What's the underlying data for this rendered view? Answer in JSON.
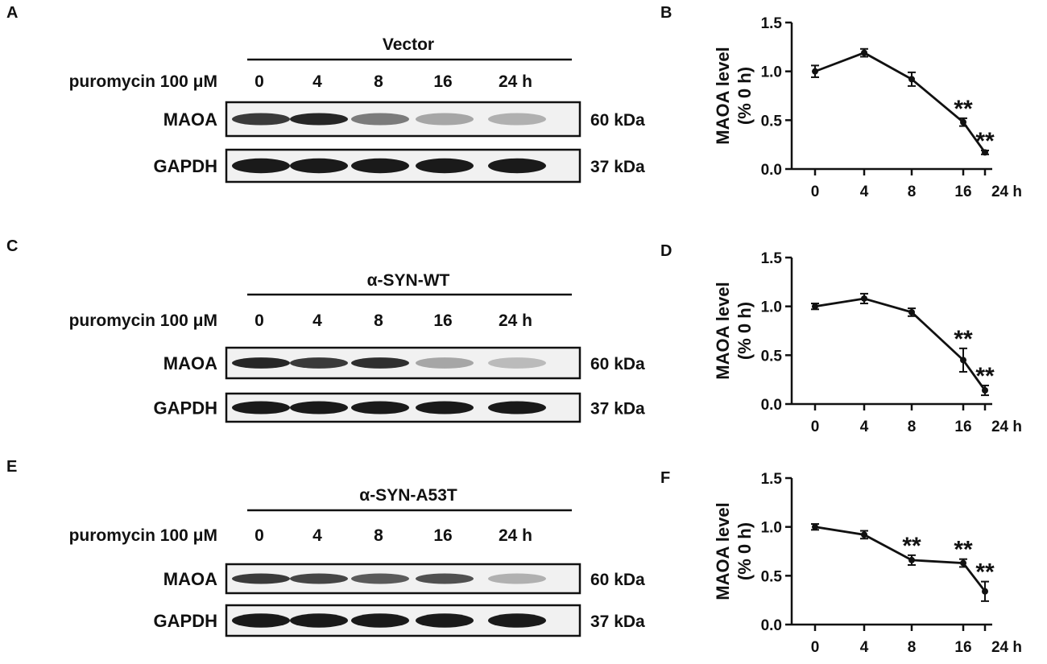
{
  "panels": [
    {
      "letter": "A",
      "treatment_label": "puromycin 100 μM",
      "group": "Vector",
      "lanes": [
        "0",
        "4",
        "8",
        "16",
        "24 h"
      ],
      "rows": [
        {
          "name": "MAOA",
          "size": "60 kDa",
          "intensity": [
            0.85,
            0.95,
            0.55,
            0.35,
            0.3
          ]
        },
        {
          "name": "GAPDH",
          "size": "37 kDa",
          "intensity": [
            1,
            1,
            1,
            1,
            1
          ]
        }
      ]
    },
    {
      "letter": "C",
      "treatment_label": "puromycin 100 μM",
      "group": "α-SYN-WT",
      "lanes": [
        "0",
        "4",
        "8",
        "16",
        "24 h"
      ],
      "rows": [
        {
          "name": "MAOA",
          "size": "60 kDa",
          "intensity": [
            0.95,
            0.85,
            0.9,
            0.35,
            0.25
          ]
        },
        {
          "name": "GAPDH",
          "size": "37 kDa",
          "intensity": [
            1,
            1,
            1,
            1,
            1
          ]
        }
      ]
    },
    {
      "letter": "E",
      "treatment_label": "puromycin 100 μM",
      "group": "α-SYN-A53T",
      "lanes": [
        "0",
        "4",
        "8",
        "16",
        "24 h"
      ],
      "rows": [
        {
          "name": "MAOA",
          "size": "60 kDa",
          "intensity": [
            0.85,
            0.8,
            0.7,
            0.75,
            0.3
          ]
        },
        {
          "name": "GAPDH",
          "size": "37 kDa",
          "intensity": [
            1,
            1,
            1,
            1,
            1
          ]
        }
      ]
    }
  ],
  "chart_data": [
    {
      "type": "line",
      "letter": "B",
      "categories": [
        "0",
        "4",
        "8",
        "16",
        "24 h"
      ],
      "values": [
        1.0,
        1.19,
        0.92,
        0.48,
        0.17
      ],
      "errors": [
        0.06,
        0.04,
        0.07,
        0.04,
        0.02
      ],
      "annotations": [
        "",
        "",
        "",
        "**",
        "**"
      ],
      "ylabel_line1": "MAOA level",
      "ylabel_line2": "(% 0 h)",
      "ylim": [
        0,
        1.5
      ],
      "yticks": [
        "0.0",
        "0.5",
        "1.0",
        "1.5"
      ],
      "grid": false
    },
    {
      "type": "line",
      "letter": "D",
      "categories": [
        "0",
        "4",
        "8",
        "16",
        "24 h"
      ],
      "values": [
        1.0,
        1.08,
        0.94,
        0.45,
        0.14
      ],
      "errors": [
        0.03,
        0.05,
        0.04,
        0.12,
        0.05
      ],
      "annotations": [
        "",
        "",
        "",
        "**",
        "**"
      ],
      "ylabel_line1": "MAOA level",
      "ylabel_line2": "(% 0 h)",
      "ylim": [
        0,
        1.5
      ],
      "yticks": [
        "0.0",
        "0.5",
        "1.0",
        "1.5"
      ],
      "grid": false
    },
    {
      "type": "line",
      "letter": "F",
      "categories": [
        "0",
        "4",
        "8",
        "16",
        "24 h"
      ],
      "values": [
        1.0,
        0.92,
        0.66,
        0.63,
        0.34
      ],
      "errors": [
        0.03,
        0.04,
        0.05,
        0.04,
        0.1
      ],
      "annotations": [
        "",
        "",
        "**",
        "**",
        "**"
      ],
      "ylabel_line1": "MAOA level",
      "ylabel_line2": "(% 0 h)",
      "ylim": [
        0,
        1.5
      ],
      "yticks": [
        "0.0",
        "0.5",
        "1.0",
        "1.5"
      ],
      "grid": false
    }
  ]
}
